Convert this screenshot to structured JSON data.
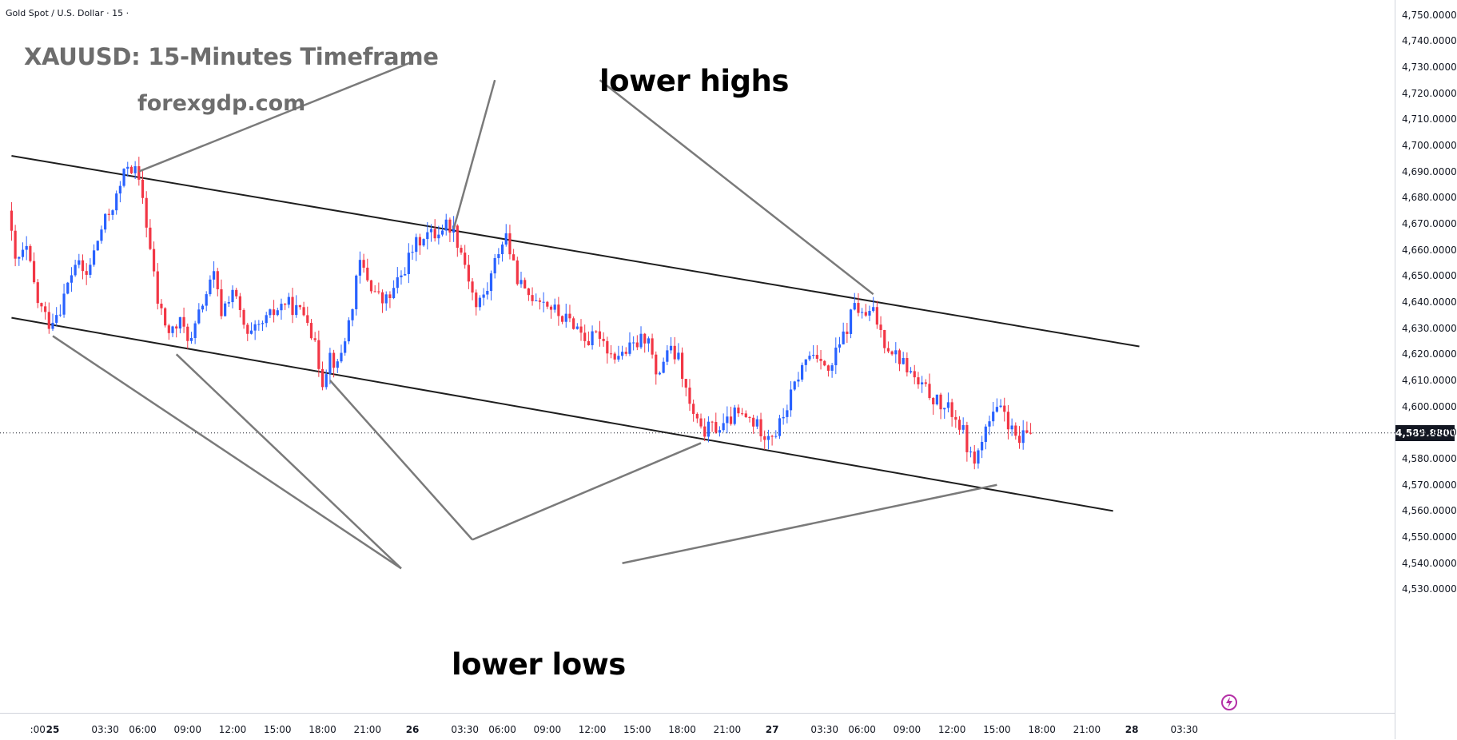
{
  "header": {
    "symbol_line": "Gold Spot / U.S. Dollar · 15 ·",
    "watermark_title": "XAUUSD: 15-Minutes Timeframe",
    "watermark_site": "forexgdp.com"
  },
  "annotations": {
    "lower_highs": "lower highs",
    "lower_lows": "lower lows"
  },
  "colors": {
    "up": "#2962ff",
    "down": "#f23645",
    "channel_line": "#1e1e1e",
    "pointer_line": "#7a7a7a"
  },
  "chart_data": {
    "type": "candlestick",
    "title": "XAUUSD: 15-Minutes Timeframe",
    "symbol": "Gold Spot / U.S. Dollar",
    "timeframe": "15",
    "ylim": [
      4520,
      4755
    ],
    "y_ticks": [
      4530,
      4540,
      4550,
      4560,
      4570,
      4580,
      4590,
      4600,
      4610,
      4620,
      4630,
      4640,
      4650,
      4660,
      4670,
      4680,
      4690,
      4700,
      4710,
      4720,
      4730,
      4740,
      4750
    ],
    "y_tick_labels": [
      "4,530.0000",
      "4,540.0000",
      "4,550.0000",
      "4,560.0000",
      "4,570.0000",
      "4,580.0000",
      "4,590.0000",
      "4,600.0000",
      "4,610.0000",
      "4,620.0000",
      "4,630.0000",
      "4,640.0000",
      "4,650.0000",
      "4,660.0000",
      "4,670.0000",
      "4,680.0000",
      "4,690.0000",
      "4,700.0000",
      "4,710.0000",
      "4,720.0000",
      "4,730.0000",
      "4,740.0000",
      "4,750.0000"
    ],
    "x_ticks": [
      {
        "t": -4,
        "label": ":00",
        "bold": false
      },
      {
        "t": 0,
        "label": "25",
        "bold": true
      },
      {
        "t": 14,
        "label": "03:30",
        "bold": false
      },
      {
        "t": 24,
        "label": "06:00",
        "bold": false
      },
      {
        "t": 36,
        "label": "09:00",
        "bold": false
      },
      {
        "t": 48,
        "label": "12:00",
        "bold": false
      },
      {
        "t": 60,
        "label": "15:00",
        "bold": false
      },
      {
        "t": 72,
        "label": "18:00",
        "bold": false
      },
      {
        "t": 84,
        "label": "21:00",
        "bold": false
      },
      {
        "t": 96,
        "label": "26",
        "bold": true
      },
      {
        "t": 110,
        "label": "03:30",
        "bold": false
      },
      {
        "t": 120,
        "label": "06:00",
        "bold": false
      },
      {
        "t": 132,
        "label": "09:00",
        "bold": false
      },
      {
        "t": 144,
        "label": "12:00",
        "bold": false
      },
      {
        "t": 156,
        "label": "15:00",
        "bold": false
      },
      {
        "t": 168,
        "label": "18:00",
        "bold": false
      },
      {
        "t": 180,
        "label": "21:00",
        "bold": false
      },
      {
        "t": 192,
        "label": "27",
        "bold": true
      },
      {
        "t": 206,
        "label": "03:30",
        "bold": false
      },
      {
        "t": 216,
        "label": "06:00",
        "bold": false
      },
      {
        "t": 228,
        "label": "09:00",
        "bold": false
      },
      {
        "t": 240,
        "label": "12:00",
        "bold": false
      },
      {
        "t": 252,
        "label": "15:00",
        "bold": false
      },
      {
        "t": 264,
        "label": "18:00",
        "bold": false
      },
      {
        "t": 276,
        "label": "21:00",
        "bold": false
      },
      {
        "t": 288,
        "label": "28",
        "bold": true
      },
      {
        "t": 302,
        "label": "03:30",
        "bold": false
      }
    ],
    "last_price": 4589.88,
    "last_price_label": "4,589.8800",
    "price_path": [
      [
        -11,
        4675
      ],
      [
        -9,
        4655
      ],
      [
        -6,
        4660
      ],
      [
        -3,
        4640
      ],
      [
        0,
        4632
      ],
      [
        3,
        4638
      ],
      [
        7,
        4655
      ],
      [
        10,
        4650
      ],
      [
        14,
        4668
      ],
      [
        18,
        4680
      ],
      [
        21,
        4693
      ],
      [
        23,
        4690
      ],
      [
        25,
        4680
      ],
      [
        27,
        4660
      ],
      [
        29,
        4640
      ],
      [
        32,
        4628
      ],
      [
        35,
        4632
      ],
      [
        38,
        4625
      ],
      [
        41,
        4640
      ],
      [
        44,
        4650
      ],
      [
        46,
        4636
      ],
      [
        49,
        4645
      ],
      [
        53,
        4626
      ],
      [
        56,
        4630
      ],
      [
        60,
        4636
      ],
      [
        63,
        4640
      ],
      [
        66,
        4637
      ],
      [
        69,
        4635
      ],
      [
        73,
        4610
      ],
      [
        75,
        4620
      ],
      [
        77,
        4615
      ],
      [
        80,
        4632
      ],
      [
        83,
        4655
      ],
      [
        86,
        4646
      ],
      [
        89,
        4640
      ],
      [
        91,
        4642
      ],
      [
        94,
        4650
      ],
      [
        97,
        4660
      ],
      [
        100,
        4666
      ],
      [
        103,
        4666
      ],
      [
        106,
        4670
      ],
      [
        108,
        4668
      ],
      [
        111,
        4655
      ],
      [
        114,
        4638
      ],
      [
        117,
        4645
      ],
      [
        120,
        4660
      ],
      [
        122,
        4666
      ],
      [
        124,
        4653
      ],
      [
        127,
        4643
      ],
      [
        131,
        4642
      ],
      [
        134,
        4638
      ],
      [
        137,
        4634
      ],
      [
        140,
        4632
      ],
      [
        144,
        4625
      ],
      [
        147,
        4628
      ],
      [
        150,
        4620
      ],
      [
        153,
        4620
      ],
      [
        157,
        4624
      ],
      [
        160,
        4628
      ],
      [
        162,
        4610
      ],
      [
        165,
        4622
      ],
      [
        168,
        4618
      ],
      [
        171,
        4600
      ],
      [
        174,
        4590
      ],
      [
        177,
        4592
      ],
      [
        180,
        4592
      ],
      [
        183,
        4597
      ],
      [
        187,
        4595
      ],
      [
        191,
        4590
      ],
      [
        194,
        4590
      ],
      [
        197,
        4600
      ],
      [
        200,
        4612
      ],
      [
        203,
        4620
      ],
      [
        206,
        4620
      ],
      [
        208,
        4612
      ],
      [
        210,
        4620
      ],
      [
        213,
        4630
      ],
      [
        215,
        4640
      ],
      [
        217,
        4634
      ],
      [
        220,
        4636
      ],
      [
        223,
        4625
      ],
      [
        226,
        4620
      ],
      [
        229,
        4615
      ],
      [
        232,
        4608
      ],
      [
        235,
        4605
      ],
      [
        238,
        4600
      ],
      [
        241,
        4598
      ],
      [
        244,
        4590
      ],
      [
        246,
        4580
      ],
      [
        248,
        4582
      ],
      [
        250,
        4592
      ],
      [
        253,
        4598
      ],
      [
        255,
        4598
      ],
      [
        257,
        4590
      ],
      [
        259,
        4586
      ],
      [
        261,
        4589.88
      ]
    ],
    "channel": {
      "upper": [
        [
          -11,
          4696
        ],
        [
          290,
          4623
        ]
      ],
      "lower": [
        [
          -11,
          4634
        ],
        [
          283,
          4560
        ]
      ]
    },
    "highs_points": [
      [
        23,
        4690
      ],
      [
        107,
        4668
      ],
      [
        219,
        4643
      ]
    ],
    "lows_points": [
      [
        0,
        4627
      ],
      [
        33,
        4620
      ],
      [
        74,
        4610
      ],
      [
        173,
        4586
      ],
      [
        252,
        4570
      ]
    ],
    "highs_label_anchor": [
      [
        96,
        4732
      ],
      [
        118,
        4725
      ],
      [
        146,
        4725
      ]
    ],
    "lows_label_anchor": [
      [
        93,
        4538
      ],
      [
        112,
        4549
      ],
      [
        152,
        4540
      ]
    ],
    "grid": false,
    "legend": "none"
  }
}
